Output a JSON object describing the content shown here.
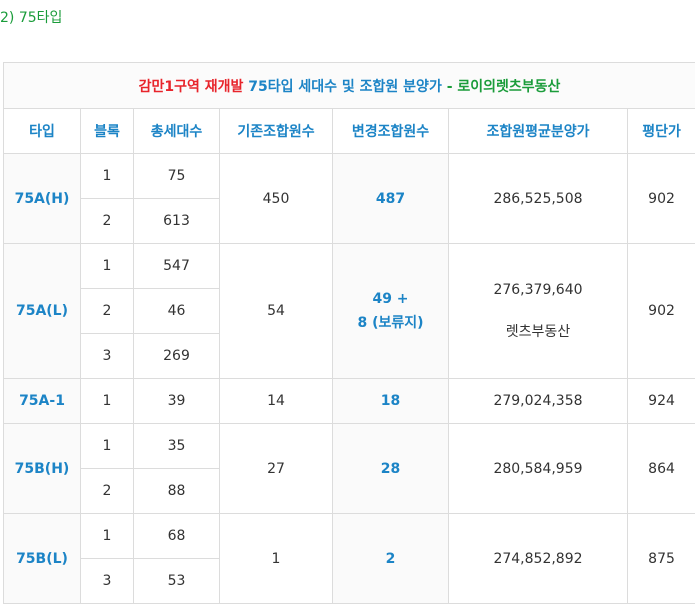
{
  "heading": "2) 75타입",
  "caption": {
    "part1": "감만1구역 재개발",
    "part2": "75타입 세대수 및 조합원 분양가",
    "part3": "- 로이의렛츠부동산"
  },
  "columns": [
    "타입",
    "블록",
    "총세대수",
    "기존조합원수",
    "변경조합원수",
    "조합원평균분양가",
    "평단가"
  ],
  "groups": [
    {
      "type": "75A(H)",
      "rows": [
        {
          "block": "1",
          "units": "75"
        },
        {
          "block": "2",
          "units": "613"
        }
      ],
      "existing": "450",
      "changed_line1": "487",
      "changed_line2": "",
      "price": "286,525,508",
      "price_note": "",
      "per_pyeong": "902"
    },
    {
      "type": "75A(L)",
      "rows": [
        {
          "block": "1",
          "units": "547"
        },
        {
          "block": "2",
          "units": "46"
        },
        {
          "block": "3",
          "units": "269"
        }
      ],
      "existing": "54",
      "changed_line1": "49 +",
      "changed_line2": "8 (보류지)",
      "price": "276,379,640",
      "price_note": "렛츠부동산",
      "per_pyeong": "902"
    },
    {
      "type": "75A-1",
      "rows": [
        {
          "block": "1",
          "units": "39"
        }
      ],
      "existing": "14",
      "changed_line1": "18",
      "changed_line2": "",
      "price": "279,024,358",
      "price_note": "",
      "per_pyeong": "924"
    },
    {
      "type": "75B(H)",
      "rows": [
        {
          "block": "1",
          "units": "35"
        },
        {
          "block": "2",
          "units": "88"
        }
      ],
      "existing": "27",
      "changed_line1": "28",
      "changed_line2": "",
      "price": "280,584,959",
      "price_note": "",
      "per_pyeong": "864"
    },
    {
      "type": "75B(L)",
      "rows": [
        {
          "block": "1",
          "units": "68"
        },
        {
          "block": "3",
          "units": "53"
        }
      ],
      "existing": "1",
      "changed_line1": "2",
      "changed_line2": "",
      "price": "274,852,892",
      "price_note": "",
      "per_pyeong": "875"
    }
  ]
}
